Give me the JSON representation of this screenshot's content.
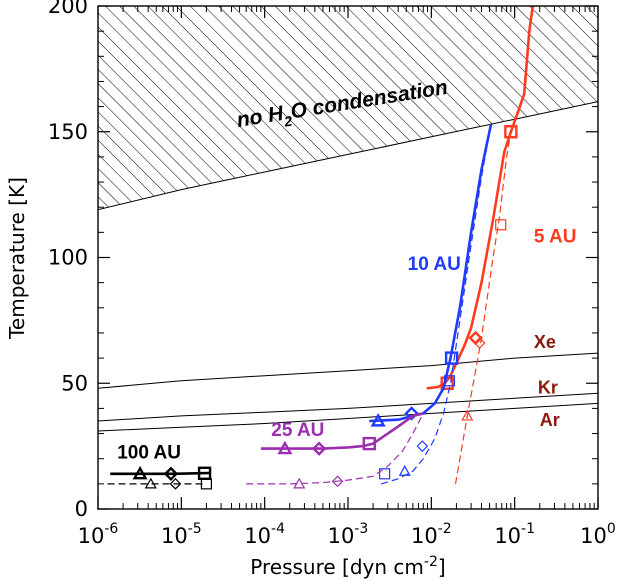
{
  "chart_data": {
    "type": "line",
    "title": "",
    "xlabel": "Pressure [dyn cm",
    "xlabel_exp": "-2",
    "xlabel_suffix": "]",
    "ylabel": "Temperature [K]",
    "x_scale": "log",
    "xlim": [
      1e-06,
      1
    ],
    "ylim": [
      0,
      200
    ],
    "x_ticks": [
      {
        "base": "10",
        "exp": "-6",
        "value": 1e-06
      },
      {
        "base": "10",
        "exp": "-5",
        "value": 1e-05
      },
      {
        "base": "10",
        "exp": "-4",
        "value": 0.0001
      },
      {
        "base": "10",
        "exp": "-3",
        "value": 0.001
      },
      {
        "base": "10",
        "exp": "-2",
        "value": 0.01
      },
      {
        "base": "10",
        "exp": "-1",
        "value": 0.1
      },
      {
        "base": "10",
        "exp": "0",
        "value": 1
      }
    ],
    "y_ticks": [
      {
        "label": "0",
        "value": 0
      },
      {
        "label": "50",
        "value": 50
      },
      {
        "label": "100",
        "value": 100
      },
      {
        "label": "150",
        "value": 150
      },
      {
        "label": "200",
        "value": 200
      }
    ],
    "hatched_region": {
      "label": "no H",
      "label_sub": "2",
      "label_rest": "O condensation",
      "boundary": [
        [
          1e-06,
          119
        ],
        [
          1e-05,
          127
        ],
        [
          0.0001,
          134
        ],
        [
          0.001,
          141
        ],
        [
          0.01,
          148
        ],
        [
          0.1,
          155
        ],
        [
          1,
          162
        ]
      ]
    },
    "condensation_curves": [
      {
        "name": "Xe",
        "points": [
          [
            1e-06,
            48
          ],
          [
            1e-05,
            51
          ],
          [
            0.0001,
            53
          ],
          [
            0.001,
            55
          ],
          [
            0.01,
            57
          ],
          [
            0.1,
            60
          ],
          [
            1,
            62
          ]
        ]
      },
      {
        "name": "Kr",
        "points": [
          [
            1e-06,
            35
          ],
          [
            1e-05,
            37
          ],
          [
            0.0001,
            38.5
          ],
          [
            0.001,
            40
          ],
          [
            0.01,
            42
          ],
          [
            0.1,
            44
          ],
          [
            1,
            46
          ]
        ]
      },
      {
        "name": "Ar",
        "points": [
          [
            1e-06,
            31
          ],
          [
            1e-05,
            32.5
          ],
          [
            0.0001,
            34
          ],
          [
            0.001,
            36
          ],
          [
            0.01,
            38
          ],
          [
            0.1,
            40
          ],
          [
            1,
            42
          ]
        ]
      }
    ],
    "series": [
      {
        "name": "5 AU",
        "color": "#ff3b1f",
        "solid": [
          [
            0.0088,
            48
          ],
          [
            0.012,
            48.5
          ],
          [
            0.0145,
            50
          ],
          [
            0.017,
            53
          ],
          [
            0.02,
            58
          ],
          [
            0.025,
            65
          ],
          [
            0.03,
            72
          ],
          [
            0.04,
            90
          ],
          [
            0.055,
            115
          ],
          [
            0.075,
            142
          ],
          [
            0.09,
            150
          ],
          [
            0.11,
            158
          ],
          [
            0.13,
            165
          ],
          [
            0.15,
            190
          ],
          [
            0.165,
            200
          ]
        ],
        "dashed": [
          [
            0.0195,
            10
          ],
          [
            0.022,
            20
          ],
          [
            0.027,
            37
          ],
          [
            0.034,
            55
          ],
          [
            0.04,
            68
          ],
          [
            0.045,
            80
          ],
          [
            0.055,
            100
          ],
          [
            0.065,
            115
          ],
          [
            0.08,
            140
          ],
          [
            0.09,
            150
          ]
        ],
        "markers": [
          {
            "shape": "square",
            "x": 0.09,
            "y": 150,
            "filled": true
          },
          {
            "shape": "square",
            "x": 0.068,
            "y": 113,
            "filled": false
          },
          {
            "shape": "diamond",
            "x": 0.038,
            "y": 66,
            "filled": false
          },
          {
            "shape": "diamond",
            "x": 0.034,
            "y": 68,
            "filled": true
          },
          {
            "shape": "square",
            "x": 0.0155,
            "y": 50,
            "filled": true
          },
          {
            "shape": "triangle",
            "x": 0.027,
            "y": 37,
            "filled": false
          }
        ]
      },
      {
        "name": "10 AU",
        "color": "#1f3bff",
        "solid": [
          [
            0.0018,
            35
          ],
          [
            0.004,
            35.5
          ],
          [
            0.006,
            37
          ],
          [
            0.008,
            38
          ],
          [
            0.011,
            42
          ],
          [
            0.014,
            48
          ],
          [
            0.017,
            60
          ],
          [
            0.022,
            80
          ],
          [
            0.03,
            110
          ],
          [
            0.04,
            135
          ],
          [
            0.052,
            153
          ]
        ],
        "dashed": [
          [
            0.0025,
            10
          ],
          [
            0.004,
            12
          ],
          [
            0.006,
            15
          ],
          [
            0.008,
            20
          ],
          [
            0.011,
            28
          ],
          [
            0.014,
            38
          ],
          [
            0.017,
            50
          ],
          [
            0.022,
            75
          ],
          [
            0.03,
            105
          ],
          [
            0.04,
            132
          ],
          [
            0.05,
            150
          ]
        ],
        "markers": [
          {
            "shape": "square",
            "x": 0.0175,
            "y": 60,
            "filled": true
          },
          {
            "shape": "square",
            "x": 0.0165,
            "y": 51,
            "filled": false
          },
          {
            "shape": "diamond",
            "x": 0.0058,
            "y": 38,
            "filled": true
          },
          {
            "shape": "diamond",
            "x": 0.0078,
            "y": 25,
            "filled": false
          },
          {
            "shape": "triangle",
            "x": 0.0023,
            "y": 35,
            "filled": true
          },
          {
            "shape": "triangle",
            "x": 0.0048,
            "y": 15,
            "filled": false
          },
          {
            "shape": "square",
            "x": 0.00275,
            "y": 14,
            "filled": false
          }
        ]
      },
      {
        "name": "25 AU",
        "color": "#9b2fae",
        "solid": [
          [
            9e-05,
            24
          ],
          [
            0.0002,
            24
          ],
          [
            0.0005,
            24
          ],
          [
            0.001,
            24.5
          ],
          [
            0.0015,
            25
          ],
          [
            0.002,
            26
          ],
          [
            0.003,
            30
          ],
          [
            0.0045,
            34
          ],
          [
            0.006,
            37
          ],
          [
            0.008,
            38
          ]
        ],
        "dashed": [
          [
            6e-05,
            10
          ],
          [
            0.0002,
            10
          ],
          [
            0.0005,
            10.5
          ],
          [
            0.001,
            11.5
          ],
          [
            0.002,
            13
          ],
          [
            0.003,
            17
          ],
          [
            0.0045,
            23
          ],
          [
            0.006,
            30
          ],
          [
            0.008,
            38
          ]
        ],
        "markers": [
          {
            "shape": "triangle",
            "x": 0.000175,
            "y": 24,
            "filled": true
          },
          {
            "shape": "diamond",
            "x": 0.00045,
            "y": 24,
            "filled": true
          },
          {
            "shape": "square",
            "x": 0.0018,
            "y": 26,
            "filled": true
          },
          {
            "shape": "triangle",
            "x": 0.00026,
            "y": 10,
            "filled": false
          },
          {
            "shape": "diamond",
            "x": 0.00075,
            "y": 11,
            "filled": false
          }
        ]
      },
      {
        "name": "100 AU",
        "color": "#000000",
        "solid": [
          [
            1.4e-06,
            14
          ],
          [
            3e-06,
            14
          ],
          [
            8e-06,
            14
          ],
          [
            1.5e-05,
            14.2
          ],
          [
            2.2e-05,
            14.3
          ]
        ],
        "dashed": [
          [
            1.3e-06,
            10
          ],
          [
            3e-06,
            10
          ],
          [
            8e-06,
            10
          ],
          [
            1.5e-05,
            10
          ],
          [
            2e-05,
            10
          ]
        ],
        "markers": [
          {
            "shape": "triangle",
            "x": 3.2e-06,
            "y": 14,
            "filled": true
          },
          {
            "shape": "diamond",
            "x": 7.5e-06,
            "y": 14,
            "filled": true
          },
          {
            "shape": "square",
            "x": 1.9e-05,
            "y": 14.2,
            "filled": true
          },
          {
            "shape": "triangle",
            "x": 4.3e-06,
            "y": 10,
            "filled": false
          },
          {
            "shape": "diamond",
            "x": 8.5e-06,
            "y": 10,
            "filled": false
          },
          {
            "shape": "square",
            "x": 2e-05,
            "y": 10,
            "filled": false
          }
        ]
      }
    ],
    "annotations": [
      {
        "text": "10 AU",
        "color": "#1f3bff",
        "x": 0.0052,
        "y": 95
      },
      {
        "text": "5 AU",
        "color": "#ff3b1f",
        "x": 0.17,
        "y": 106
      },
      {
        "text": "25 AU",
        "color": "#9b2fae",
        "x": 0.00012,
        "y": 29
      },
      {
        "text": "100 AU",
        "color": "#000000",
        "x": 1.7e-06,
        "y": 20
      },
      {
        "text": "Xe",
        "color": "#8b1a0a",
        "x": 0.17,
        "y": 64
      },
      {
        "text": "Kr",
        "color": "#8b1a0a",
        "x": 0.19,
        "y": 46
      },
      {
        "text": "Ar",
        "color": "#8b1a0a",
        "x": 0.2,
        "y": 33
      }
    ]
  }
}
